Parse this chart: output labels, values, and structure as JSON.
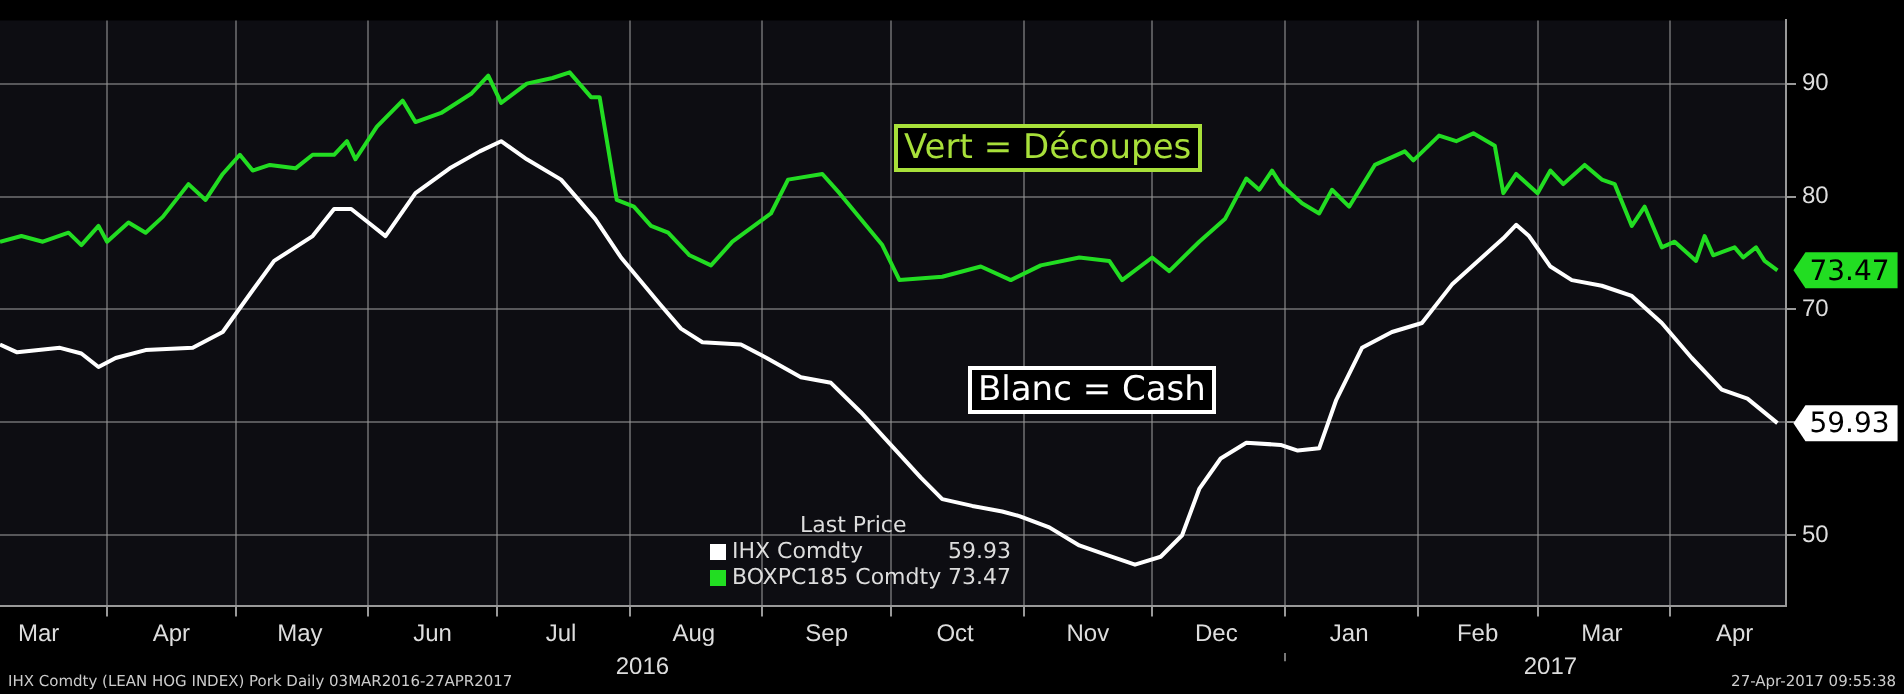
{
  "chart_data": {
    "type": "line",
    "series": [
      {
        "name": "IHX Comdty",
        "color": "#ffffff",
        "x": [
          "2016-03-07",
          "2016-03-11",
          "2016-03-21",
          "2016-03-26",
          "2016-03-30",
          "2016-04-03",
          "2016-04-10",
          "2016-04-21",
          "2016-04-28",
          "2016-05-05",
          "2016-05-10",
          "2016-05-19",
          "2016-05-24",
          "2016-05-28",
          "2016-06-01",
          "2016-06-05",
          "2016-06-12",
          "2016-06-20",
          "2016-06-27",
          "2016-07-02",
          "2016-07-08",
          "2016-07-16",
          "2016-07-24",
          "2016-07-30",
          "2016-08-08",
          "2016-08-13",
          "2016-08-18",
          "2016-08-27",
          "2016-09-02",
          "2016-09-10",
          "2016-09-17",
          "2016-09-24",
          "2016-10-01",
          "2016-10-08",
          "2016-10-13",
          "2016-10-20",
          "2016-10-27",
          "2016-10-31",
          "2016-11-07",
          "2016-11-14",
          "2016-11-20",
          "2016-11-27",
          "2016-12-03",
          "2016-12-08",
          "2016-12-12",
          "2016-12-17",
          "2016-12-23",
          "2016-12-31",
          "2017-01-04",
          "2017-01-09",
          "2017-01-13",
          "2017-01-19",
          "2017-01-26",
          "2017-02-02",
          "2017-02-09",
          "2017-02-16",
          "2017-02-21",
          "2017-02-24",
          "2017-02-27",
          "2017-03-04",
          "2017-03-09",
          "2017-03-16",
          "2017-03-23",
          "2017-03-30",
          "2017-04-06",
          "2017-04-13",
          "2017-04-19",
          "2017-04-26"
        ],
        "values": [
          66.9,
          66.2,
          66.6,
          66.1,
          64.9,
          65.7,
          66.4,
          66.6,
          68.0,
          71.7,
          74.3,
          76.5,
          78.9,
          78.9,
          77.7,
          76.5,
          80.3,
          82.5,
          84.0,
          84.9,
          83.3,
          81.5,
          78.0,
          74.6,
          70.5,
          68.3,
          67.1,
          66.9,
          65.7,
          64.0,
          63.5,
          60.9,
          58.0,
          55.1,
          53.2,
          52.6,
          52.1,
          51.7,
          50.7,
          49.1,
          48.3,
          47.4,
          48.1,
          50.0,
          54.1,
          56.8,
          58.2,
          58.0,
          57.5,
          57.7,
          62.0,
          66.6,
          68.0,
          68.8,
          72.2,
          74.6,
          76.3,
          77.5,
          76.5,
          73.8,
          72.6,
          72.1,
          71.2,
          68.8,
          65.7,
          62.9,
          62.1,
          59.93
        ]
      },
      {
        "name": "BOXPC185 Comdty",
        "color": "#22dd22",
        "x": [
          "2016-03-07",
          "2016-03-12",
          "2016-03-17",
          "2016-03-23",
          "2016-03-26",
          "2016-03-30",
          "2016-04-01",
          "2016-04-06",
          "2016-04-10",
          "2016-04-14",
          "2016-04-20",
          "2016-04-24",
          "2016-04-28",
          "2016-05-02",
          "2016-05-05",
          "2016-05-09",
          "2016-05-15",
          "2016-05-19",
          "2016-05-24",
          "2016-05-27",
          "2016-05-29",
          "2016-06-03",
          "2016-06-09",
          "2016-06-12",
          "2016-06-18",
          "2016-06-25",
          "2016-06-29",
          "2016-07-02",
          "2016-07-08",
          "2016-07-14",
          "2016-07-18",
          "2016-07-23",
          "2016-07-25",
          "2016-07-29",
          "2016-08-02",
          "2016-08-06",
          "2016-08-10",
          "2016-08-15",
          "2016-08-20",
          "2016-08-25",
          "2016-09-03",
          "2016-09-07",
          "2016-09-15",
          "2016-09-19",
          "2016-09-29",
          "2016-10-03",
          "2016-10-13",
          "2016-10-22",
          "2016-10-29",
          "2016-11-05",
          "2016-11-14",
          "2016-11-21",
          "2016-11-24",
          "2016-12-01",
          "2016-12-05",
          "2016-12-12",
          "2016-12-18",
          "2016-12-23",
          "2016-12-26",
          "2016-12-29",
          "2016-12-31",
          "2017-01-05",
          "2017-01-09",
          "2017-01-12",
          "2017-01-16",
          "2017-01-22",
          "2017-01-29",
          "2017-01-31",
          "2017-02-06",
          "2017-02-10",
          "2017-02-14",
          "2017-02-19",
          "2017-02-21",
          "2017-02-24",
          "2017-03-01",
          "2017-03-04",
          "2017-03-07",
          "2017-03-12",
          "2017-03-16",
          "2017-03-19",
          "2017-03-23",
          "2017-03-26",
          "2017-03-30",
          "2017-04-02",
          "2017-04-07",
          "2017-04-09",
          "2017-04-11",
          "2017-04-16",
          "2017-04-18",
          "2017-04-21",
          "2017-04-23",
          "2017-04-26"
        ],
        "values": [
          76.0,
          76.5,
          76.0,
          76.8,
          75.7,
          77.4,
          76.0,
          77.7,
          76.8,
          78.2,
          81.1,
          79.7,
          82.0,
          83.7,
          82.3,
          82.8,
          82.5,
          83.7,
          83.7,
          84.9,
          83.3,
          86.2,
          88.5,
          86.6,
          87.4,
          89.1,
          90.7,
          88.3,
          90.0,
          90.5,
          91.0,
          88.8,
          88.8,
          79.7,
          79.1,
          77.4,
          76.8,
          74.8,
          73.9,
          76.0,
          78.5,
          81.5,
          82.0,
          80.3,
          75.7,
          72.6,
          72.9,
          73.8,
          72.6,
          73.9,
          74.6,
          74.3,
          72.6,
          74.6,
          73.4,
          76.0,
          78.0,
          81.6,
          80.6,
          82.3,
          81.1,
          79.4,
          78.5,
          80.6,
          79.1,
          82.8,
          84.0,
          83.2,
          85.4,
          84.9,
          85.6,
          84.5,
          80.3,
          82.0,
          80.3,
          82.3,
          81.1,
          82.8,
          81.5,
          81.1,
          77.4,
          79.1,
          75.5,
          76.0,
          74.3,
          76.5,
          74.8,
          75.5,
          74.6,
          75.5,
          74.3,
          73.47
        ]
      }
    ],
    "xlim": [
      "2016-03-07",
      "2017-04-28"
    ],
    "xticks": [
      {
        "value": "2016-03-16",
        "label": "Mar"
      },
      {
        "value": "2016-04-01",
        "label": null
      },
      {
        "value": "2016-04-16",
        "label": "Apr"
      },
      {
        "value": "2016-05-01",
        "label": null
      },
      {
        "value": "2016-05-16",
        "label": "May"
      },
      {
        "value": "2016-06-01",
        "label": null
      },
      {
        "value": "2016-06-16",
        "label": "Jun"
      },
      {
        "value": "2016-07-01",
        "label": null
      },
      {
        "value": "2016-07-16",
        "label": "Jul"
      },
      {
        "value": "2016-08-01",
        "label": null
      },
      {
        "value": "2016-08-16",
        "label": "Aug"
      },
      {
        "value": "2016-09-01",
        "label": null
      },
      {
        "value": "2016-09-16",
        "label": "Sep"
      },
      {
        "value": "2016-10-01",
        "label": null
      },
      {
        "value": "2016-10-16",
        "label": "Oct"
      },
      {
        "value": "2016-11-01",
        "label": null
      },
      {
        "value": "2016-11-16",
        "label": "Nov"
      },
      {
        "value": "2016-12-01",
        "label": null
      },
      {
        "value": "2016-12-16",
        "label": "Dec"
      },
      {
        "value": "2017-01-01",
        "label": null
      },
      {
        "value": "2017-01-16",
        "label": "Jan"
      },
      {
        "value": "2017-02-01",
        "label": null
      },
      {
        "value": "2017-02-15",
        "label": "Feb"
      },
      {
        "value": "2017-03-01",
        "label": null
      },
      {
        "value": "2017-03-16",
        "label": "Mar"
      },
      {
        "value": "2017-04-01",
        "label": null
      },
      {
        "value": "2017-04-16",
        "label": "Apr"
      }
    ],
    "x2lim": [
      "2016-03-07",
      "2017-04-28"
    ],
    "x2ticks": [
      {
        "value": "2016-08-04",
        "label": "2016"
      },
      {
        "value": "2017-01-01",
        "label": null
      },
      {
        "value": "2017-03-04",
        "label": "2017"
      }
    ],
    "ylim": [
      43.7,
      95.6
    ],
    "yticks": [
      50,
      {
        "value": 60,
        "label": null
      },
      70,
      80,
      90
    ],
    "grid": true,
    "line_style": "solid",
    "legend": "bottom",
    "legend_title": "Last Price",
    "annotations": [
      "Vert = Découpes",
      "Blanc = Cash",
      {
        "text": "73.47",
        "x": "2017-04-26",
        "y": 73.47
      },
      {
        "text": "59.93",
        "x": "2017-04-26",
        "y": 59.93
      },
      "IHX Comdty (LEAN HOG INDEX) Pork  Daily 03MAR2016-27APR2017",
      "27-Apr-2017 09:55:38"
    ]
  }
}
